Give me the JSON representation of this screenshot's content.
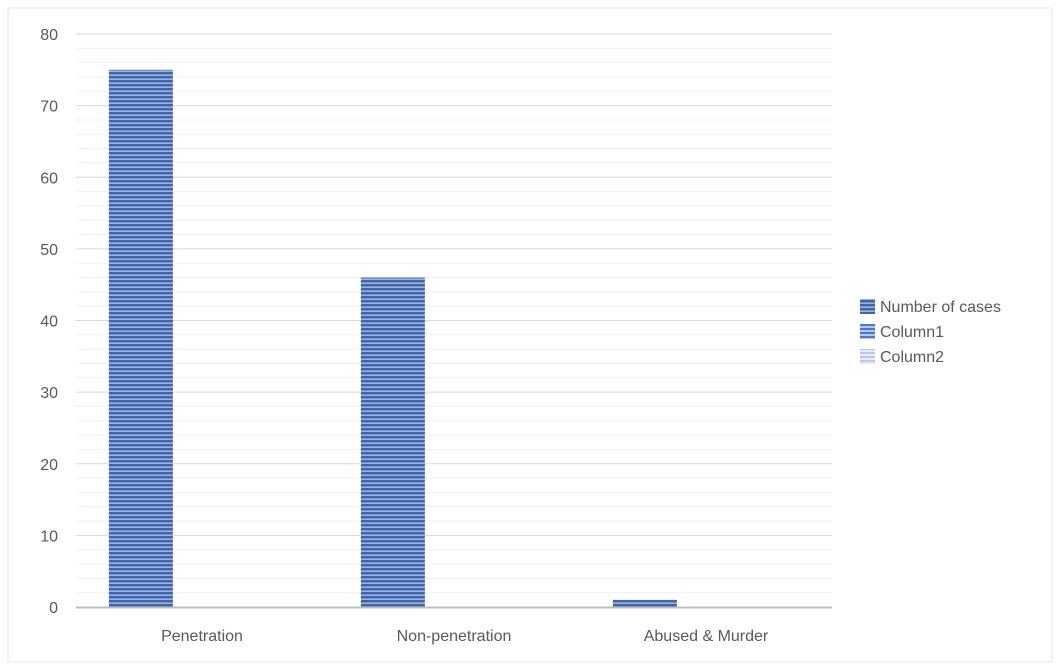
{
  "chart_data": {
    "type": "bar",
    "categories": [
      "Penetration",
      "Non-penetration",
      "Abused & Murder"
    ],
    "series": [
      {
        "name": "Number of cases",
        "values": [
          75,
          46,
          1
        ],
        "color": "#4472c4",
        "pattern": "horizontal-stripes"
      },
      {
        "name": "Column1",
        "values": [
          0,
          0,
          0
        ],
        "color": "#4472c4",
        "pattern": "horizontal-stripes"
      },
      {
        "name": "Column2",
        "values": [
          0,
          0,
          0
        ],
        "color": "#a9bde3",
        "pattern": "horizontal-stripes"
      }
    ],
    "title": "",
    "xlabel": "",
    "ylabel": "",
    "ylim": [
      0,
      80
    ],
    "yticks": [
      "0",
      "10",
      "20",
      "30",
      "40",
      "50",
      "60",
      "70",
      "80"
    ],
    "grid": true,
    "legend_position": "right",
    "colors": {
      "gridline": "#d9d9d9",
      "minor_gridline": "#f0f0f0",
      "axis": "#bfbfbf",
      "text": "#595959"
    }
  }
}
